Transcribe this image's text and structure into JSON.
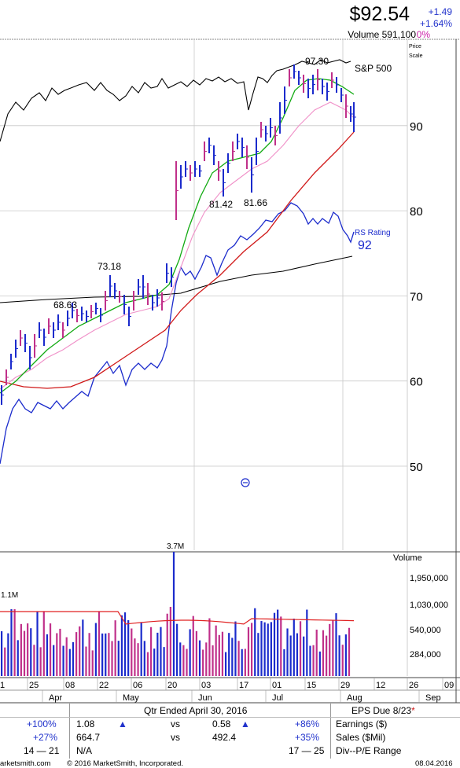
{
  "header": {
    "price": "$92.54",
    "change": "+1.49",
    "change_pct": "+1.64%",
    "volume": "Volume 591,100",
    "volume_pct": "0%"
  },
  "chart_data": {
    "type": "line",
    "price_axis": {
      "label": "Price Scale",
      "ticks": [
        90,
        80,
        70,
        60,
        50
      ]
    },
    "volume_axis": {
      "label": "Volume",
      "ticks": [
        "1,950,000",
        "1,030,000",
        "540,000",
        "284,000"
      ]
    },
    "x_ticks": [
      "1",
      "25",
      "08",
      "22",
      "06",
      "20",
      "03",
      "17",
      "01",
      "15",
      "29",
      "12",
      "26",
      "09"
    ],
    "months": [
      "Apr",
      "May",
      "Jun",
      "Jul",
      "Aug",
      "Sep"
    ],
    "price_annotations": [
      "68.63",
      "73.18",
      "81.42",
      "81.66",
      "97.30"
    ],
    "volume_annotations": [
      "1.1M",
      "3.7M"
    ],
    "series_labels": {
      "sp500": "S&P 500",
      "rs": "RS Rating",
      "rs_value": "92"
    }
  },
  "table": {
    "quarter_title": "Qtr Ended April 30, 2016",
    "eps_due_label": "EPS Due 8/23",
    "eps_due_mark": "*",
    "row1": {
      "c1": "+100%",
      "c2": "1.08",
      "vs": "vs",
      "c3": "0.58",
      "c4": "+86%",
      "label": "Earnings ($)"
    },
    "row2": {
      "c1": "+27%",
      "c2": "664.7",
      "vs": "vs",
      "c3": "492.4",
      "c4": "+35%",
      "label": "Sales ($Mil)"
    },
    "row3": {
      "c1": "14 — 21",
      "c2": "N/A",
      "c4": "17 — 25",
      "label": "Div--P/E Range"
    }
  },
  "footer": {
    "left": "arketsmith.com",
    "copyright": "© 2016 MarketSmith, Incorporated.",
    "date": "08.04.2016"
  }
}
